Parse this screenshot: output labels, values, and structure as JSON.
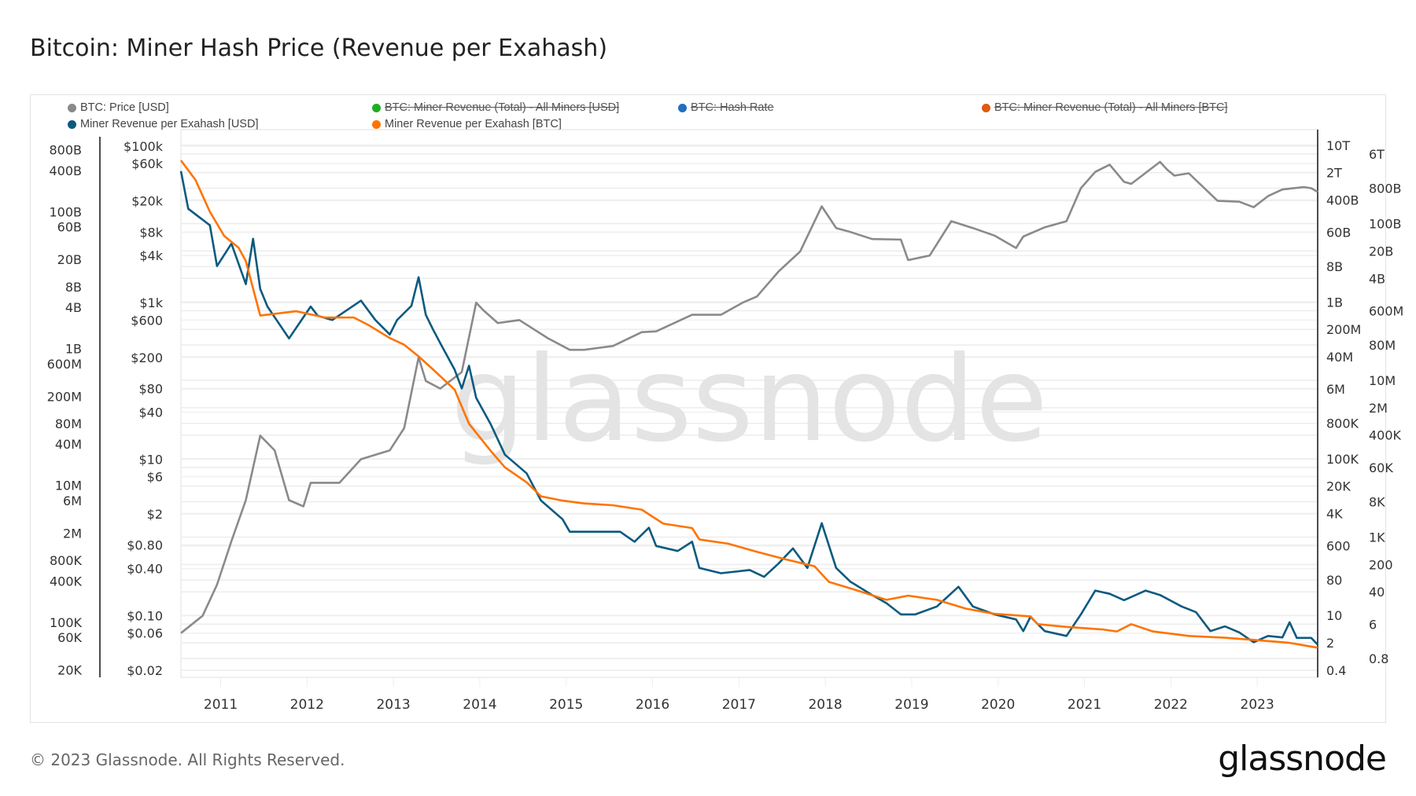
{
  "title": "Bitcoin: Miner Hash Price (Revenue per Exahash)",
  "legend": [
    {
      "label": "BTC: Price [USD]",
      "color": "#8a8a8a",
      "enabled": true
    },
    {
      "label": "BTC: Miner Revenue (Total) - All Miners [USD]",
      "color": "#1fae1f",
      "enabled": false
    },
    {
      "label": "BTC: Hash Rate",
      "color": "#1f6fc4",
      "enabled": false
    },
    {
      "label": "BTC: Miner Revenue (Total) - All Miners [BTC]",
      "color": "#e05a10",
      "enabled": false
    },
    {
      "label": "Miner Revenue per Exahash [USD]",
      "color": "#0b5a7f",
      "enabled": true
    },
    {
      "label": "Miner Revenue per Exahash [BTC]",
      "color": "#ff7300",
      "enabled": true
    }
  ],
  "watermark": "glassnode",
  "footer": {
    "copyright": "© 2023 Glassnode. All Rights Reserved.",
    "logo": "glassnode"
  },
  "chart_data": {
    "type": "line",
    "title": "Bitcoin: Miner Hash Price (Revenue per Exahash)",
    "x_axis": {
      "type": "date",
      "range": [
        "2010-07",
        "2023-09"
      ],
      "ticks": [
        "2011",
        "2012",
        "2013",
        "2014",
        "2015",
        "2016",
        "2017",
        "2018",
        "2019",
        "2020",
        "2021",
        "2022",
        "2023"
      ]
    },
    "y_axes": {
      "left_outer": {
        "scale": "log",
        "range": [
          20000,
          800000000000
        ],
        "ticks": [
          "800B",
          "400B",
          "100B",
          "60B",
          "20B",
          "8B",
          "4B",
          "1B",
          "600M",
          "200M",
          "80M",
          "40M",
          "10M",
          "6M",
          "2M",
          "800K",
          "400K",
          "100K",
          "60K",
          "20K"
        ]
      },
      "left_inner": {
        "scale": "log",
        "range": [
          0.02,
          100000
        ],
        "ticks": [
          "$100k",
          "$60k",
          "$20k",
          "$8k",
          "$4k",
          "$1k",
          "$600",
          "$200",
          "$80",
          "$40",
          "$10",
          "$6",
          "$2",
          "$0.80",
          "$0.40",
          "$0.10",
          "$0.06",
          "$0.02"
        ]
      },
      "right": {
        "scale": "log",
        "range": [
          0.4,
          10000000000000
        ],
        "ticks": [
          "10T",
          "6T",
          "2T",
          "800B",
          "400B",
          "100B",
          "60B",
          "20B",
          "8B",
          "4B",
          "1B",
          "600M",
          "200M",
          "80M",
          "40M",
          "10M",
          "6M",
          "2M",
          "800K",
          "400K",
          "100K",
          "60K",
          "20K",
          "8K",
          "4K",
          "1K",
          "600",
          "200",
          "80",
          "40",
          "10",
          "6",
          "2",
          "0.8",
          "0.4"
        ]
      }
    },
    "grid": true,
    "legend_position": "top",
    "series": [
      {
        "name": "BTC: Price [USD]",
        "axis": "left_inner",
        "color": "#8a8a8a",
        "points": [
          [
            "2010-07",
            0.06
          ],
          [
            "2010-10",
            0.1
          ],
          [
            "2010-12",
            0.25
          ],
          [
            "2011-02",
            0.9
          ],
          [
            "2011-04",
            3
          ],
          [
            "2011-06",
            20
          ],
          [
            "2011-08",
            13
          ],
          [
            "2011-10",
            3
          ],
          [
            "2011-12",
            2.5
          ],
          [
            "2012-01",
            5
          ],
          [
            "2012-05",
            5
          ],
          [
            "2012-08",
            10
          ],
          [
            "2012-12",
            13
          ],
          [
            "2013-02",
            25
          ],
          [
            "2013-04",
            200
          ],
          [
            "2013-05",
            100
          ],
          [
            "2013-07",
            80
          ],
          [
            "2013-10",
            130
          ],
          [
            "2013-12",
            1000
          ],
          [
            "2014-01",
            800
          ],
          [
            "2014-03",
            550
          ],
          [
            "2014-06",
            600
          ],
          [
            "2014-10",
            350
          ],
          [
            "2015-01",
            250
          ],
          [
            "2015-03",
            250
          ],
          [
            "2015-07",
            280
          ],
          [
            "2015-11",
            420
          ],
          [
            "2016-01",
            430
          ],
          [
            "2016-06",
            700
          ],
          [
            "2016-10",
            700
          ],
          [
            "2017-01",
            1000
          ],
          [
            "2017-03",
            1200
          ],
          [
            "2017-06",
            2500
          ],
          [
            "2017-09",
            4500
          ],
          [
            "2017-12",
            17000
          ],
          [
            "2018-02",
            9000
          ],
          [
            "2018-04",
            8000
          ],
          [
            "2018-07",
            6500
          ],
          [
            "2018-11",
            6400
          ],
          [
            "2018-12",
            3500
          ],
          [
            "2019-03",
            4000
          ],
          [
            "2019-06",
            11000
          ],
          [
            "2019-09",
            9000
          ],
          [
            "2019-12",
            7200
          ],
          [
            "2020-03",
            5000
          ],
          [
            "2020-04",
            7000
          ],
          [
            "2020-07",
            9200
          ],
          [
            "2020-10",
            11000
          ],
          [
            "2020-12",
            29000
          ],
          [
            "2021-02",
            47000
          ],
          [
            "2021-04",
            58000
          ],
          [
            "2021-06",
            35000
          ],
          [
            "2021-07",
            33000
          ],
          [
            "2021-11",
            63000
          ],
          [
            "2021-12",
            50000
          ],
          [
            "2022-01",
            42000
          ],
          [
            "2022-03",
            45000
          ],
          [
            "2022-05",
            30000
          ],
          [
            "2022-07",
            20000
          ],
          [
            "2022-10",
            19500
          ],
          [
            "2022-12",
            16600
          ],
          [
            "2023-02",
            23000
          ],
          [
            "2023-04",
            28000
          ],
          [
            "2023-07",
            30000
          ],
          [
            "2023-08",
            29000
          ],
          [
            "2023-09",
            26000
          ]
        ]
      },
      {
        "name": "Miner Revenue per Exahash [USD]",
        "axis": "left_outer",
        "color": "#0b5a7f",
        "points": [
          [
            "2010-07",
            390000000000.0
          ],
          [
            "2010-08",
            110000000000.0
          ],
          [
            "2010-11",
            63000000000.0
          ],
          [
            "2010-12",
            16000000000.0
          ],
          [
            "2011-02",
            34000000000.0
          ],
          [
            "2011-04",
            8700000000.0
          ],
          [
            "2011-05",
            40000000000.0
          ],
          [
            "2011-06",
            7400000000.0
          ],
          [
            "2011-07",
            4100000000.0
          ],
          [
            "2011-10",
            1400000000.0
          ],
          [
            "2012-01",
            4100000000.0
          ],
          [
            "2012-02",
            3000000000.0
          ],
          [
            "2012-04",
            2600000000.0
          ],
          [
            "2012-08",
            5000000000.0
          ],
          [
            "2012-10",
            2600000000.0
          ],
          [
            "2012-12",
            1600000000.0
          ],
          [
            "2013-01",
            2600000000.0
          ],
          [
            "2013-03",
            4200000000.0
          ],
          [
            "2013-04",
            11000000000.0
          ],
          [
            "2013-05",
            3100000000.0
          ],
          [
            "2013-06",
            1900000000.0
          ],
          [
            "2013-07",
            1200000000.0
          ],
          [
            "2013-09",
            490000000.0
          ],
          [
            "2013-10",
            260000000.0
          ],
          [
            "2013-11",
            560000000.0
          ],
          [
            "2013-12",
            190000000.0
          ],
          [
            "2014-02",
            79000000.0
          ],
          [
            "2014-04",
            28000000.0
          ],
          [
            "2014-07",
            15000000.0
          ],
          [
            "2014-09",
            6000000.0
          ],
          [
            "2014-12",
            3200000.0
          ],
          [
            "2015-01",
            2100000.0
          ],
          [
            "2015-05",
            2100000.0
          ],
          [
            "2015-08",
            2100000.0
          ],
          [
            "2015-10",
            1500000.0
          ],
          [
            "2015-12",
            2400000.0
          ],
          [
            "2016-01",
            1300000.0
          ],
          [
            "2016-04",
            1100000.0
          ],
          [
            "2016-06",
            1500000.0
          ],
          [
            "2016-07",
            620000.0
          ],
          [
            "2016-10",
            520000.0
          ],
          [
            "2017-02",
            580000.0
          ],
          [
            "2017-04",
            460000.0
          ],
          [
            "2017-06",
            720000.0
          ],
          [
            "2017-08",
            1200000.0
          ],
          [
            "2017-10",
            620000.0
          ],
          [
            "2017-12",
            2800000.0
          ],
          [
            "2018-02",
            620000.0
          ],
          [
            "2018-04",
            390000.0
          ],
          [
            "2018-07",
            250000.0
          ],
          [
            "2018-09",
            190000.0
          ],
          [
            "2018-11",
            130000.0
          ],
          [
            "2019-01",
            130000.0
          ],
          [
            "2019-04",
            170000.0
          ],
          [
            "2019-07",
            330000.0
          ],
          [
            "2019-09",
            170000.0
          ],
          [
            "2019-12",
            130000.0
          ],
          [
            "2020-03",
            110000.0
          ],
          [
            "2020-04",
            74000.0
          ],
          [
            "2020-05",
            120000.0
          ],
          [
            "2020-07",
            74000.0
          ],
          [
            "2020-10",
            63000.0
          ],
          [
            "2020-12",
            130000.0
          ],
          [
            "2021-02",
            290000.0
          ],
          [
            "2021-04",
            260000.0
          ],
          [
            "2021-06",
            210000.0
          ],
          [
            "2021-09",
            290000.0
          ],
          [
            "2021-11",
            250000.0
          ],
          [
            "2022-02",
            170000.0
          ],
          [
            "2022-04",
            140000.0
          ],
          [
            "2022-06",
            74000.0
          ],
          [
            "2022-08",
            87000.0
          ],
          [
            "2022-10",
            71000.0
          ],
          [
            "2022-12",
            51000.0
          ],
          [
            "2023-02",
            63000.0
          ],
          [
            "2023-04",
            60000.0
          ],
          [
            "2023-05",
            100000.0
          ],
          [
            "2023-06",
            59000.0
          ],
          [
            "2023-08",
            59000.0
          ],
          [
            "2023-09",
            47000.0
          ]
        ]
      },
      {
        "name": "Miner Revenue per Exahash [BTC]",
        "axis": "right",
        "color": "#ff7300",
        "points": [
          [
            "2010-07",
            4100000000000.0
          ],
          [
            "2010-09",
            1300000000000.0
          ],
          [
            "2010-11",
            200000000000.0
          ],
          [
            "2011-01",
            48000000000.0
          ],
          [
            "2011-03",
            24000000000.0
          ],
          [
            "2011-04",
            11000000000.0
          ],
          [
            "2011-06",
            450000000.0
          ],
          [
            "2011-11",
            580000000.0
          ],
          [
            "2012-03",
            400000000.0
          ],
          [
            "2012-07",
            400000000.0
          ],
          [
            "2012-09",
            260000000.0
          ],
          [
            "2012-12",
            120000000.0
          ],
          [
            "2013-02",
            81000000.0
          ],
          [
            "2013-04",
            41000000.0
          ],
          [
            "2013-06",
            19000000.0
          ],
          [
            "2013-09",
            5800000.0
          ],
          [
            "2013-11",
            780000.0
          ],
          [
            "2014-02",
            160000.0
          ],
          [
            "2014-04",
            60000.0
          ],
          [
            "2014-07",
            25000.0
          ],
          [
            "2014-09",
            11000.0
          ],
          [
            "2014-12",
            8500
          ],
          [
            "2015-03",
            7200
          ],
          [
            "2015-07",
            6500
          ],
          [
            "2015-11",
            5000
          ],
          [
            "2016-02",
            2200
          ],
          [
            "2016-06",
            1700
          ],
          [
            "2016-07",
            870
          ],
          [
            "2016-11",
            680
          ],
          [
            "2017-03",
            420
          ],
          [
            "2017-07",
            270
          ],
          [
            "2017-11",
            180
          ],
          [
            "2018-01",
            72
          ],
          [
            "2018-05",
            43
          ],
          [
            "2018-09",
            25
          ],
          [
            "2018-12",
            32
          ],
          [
            "2019-04",
            25
          ],
          [
            "2019-08",
            15
          ],
          [
            "2019-12",
            11
          ],
          [
            "2020-05",
            9.5
          ],
          [
            "2020-06",
            6.0
          ],
          [
            "2020-10",
            5.1
          ],
          [
            "2021-03",
            4.4
          ],
          [
            "2021-05",
            3.9
          ],
          [
            "2021-07",
            6.0
          ],
          [
            "2021-10",
            3.9
          ],
          [
            "2022-03",
            3.0
          ],
          [
            "2022-08",
            2.7
          ],
          [
            "2023-01",
            2.3
          ],
          [
            "2023-05",
            2.0
          ],
          [
            "2023-09",
            1.5
          ]
        ]
      }
    ]
  }
}
